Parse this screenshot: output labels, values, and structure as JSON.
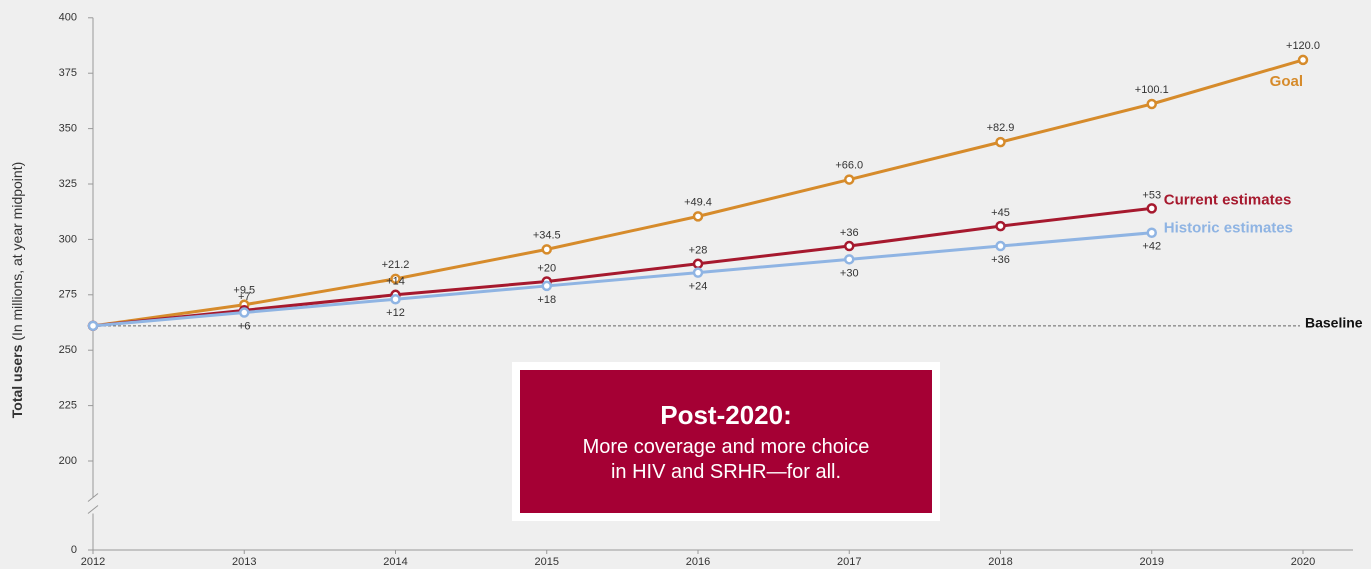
{
  "chart_data": {
    "type": "line",
    "y_label_bold": "Total users",
    "y_label": "(In millions, at year midpoint)",
    "x": [
      2012,
      2013,
      2014,
      2015,
      2016,
      2017,
      2018,
      2019,
      2020
    ],
    "xlim": [
      2012,
      2020
    ],
    "xticks": [
      2012,
      2013,
      2014,
      2015,
      2016,
      2017,
      2018,
      2019,
      2020
    ],
    "ylim": [
      0,
      400
    ],
    "yticks": [
      0,
      200,
      225,
      250,
      275,
      300,
      325,
      350,
      375,
      400
    ],
    "baseline": {
      "label": "Baseline",
      "value": 261
    },
    "series": [
      {
        "name": "Goal",
        "color": "#d68b2b",
        "values": [
          261,
          270.5,
          282.2,
          295.5,
          310.4,
          327,
          343.9,
          361.1,
          381
        ],
        "increment_labels": [
          null,
          "+9.5",
          "+21.2",
          "+34.5",
          "+49.4",
          "+66.0",
          "+82.9",
          "+100.1",
          "+120.0"
        ]
      },
      {
        "name": "Current estimates",
        "color": "#a6192e",
        "values": [
          261,
          268,
          275,
          281,
          289,
          297,
          306,
          314,
          null
        ],
        "increment_labels": [
          null,
          "+7",
          "+14",
          "+20",
          "+28",
          "+36",
          "+45",
          "+53",
          null
        ]
      },
      {
        "name": "Historic estimates",
        "color": "#8fb4e3",
        "values": [
          261,
          267,
          273,
          279,
          285,
          291,
          297,
          303,
          null
        ],
        "increment_labels": [
          null,
          "+6",
          "+12",
          "+18",
          "+24",
          "+30",
          "+36",
          "+42",
          null
        ]
      }
    ],
    "callout": {
      "title": "Post-2020:",
      "text": "More coverage and more choice in HIV and SRHR—for all."
    }
  }
}
